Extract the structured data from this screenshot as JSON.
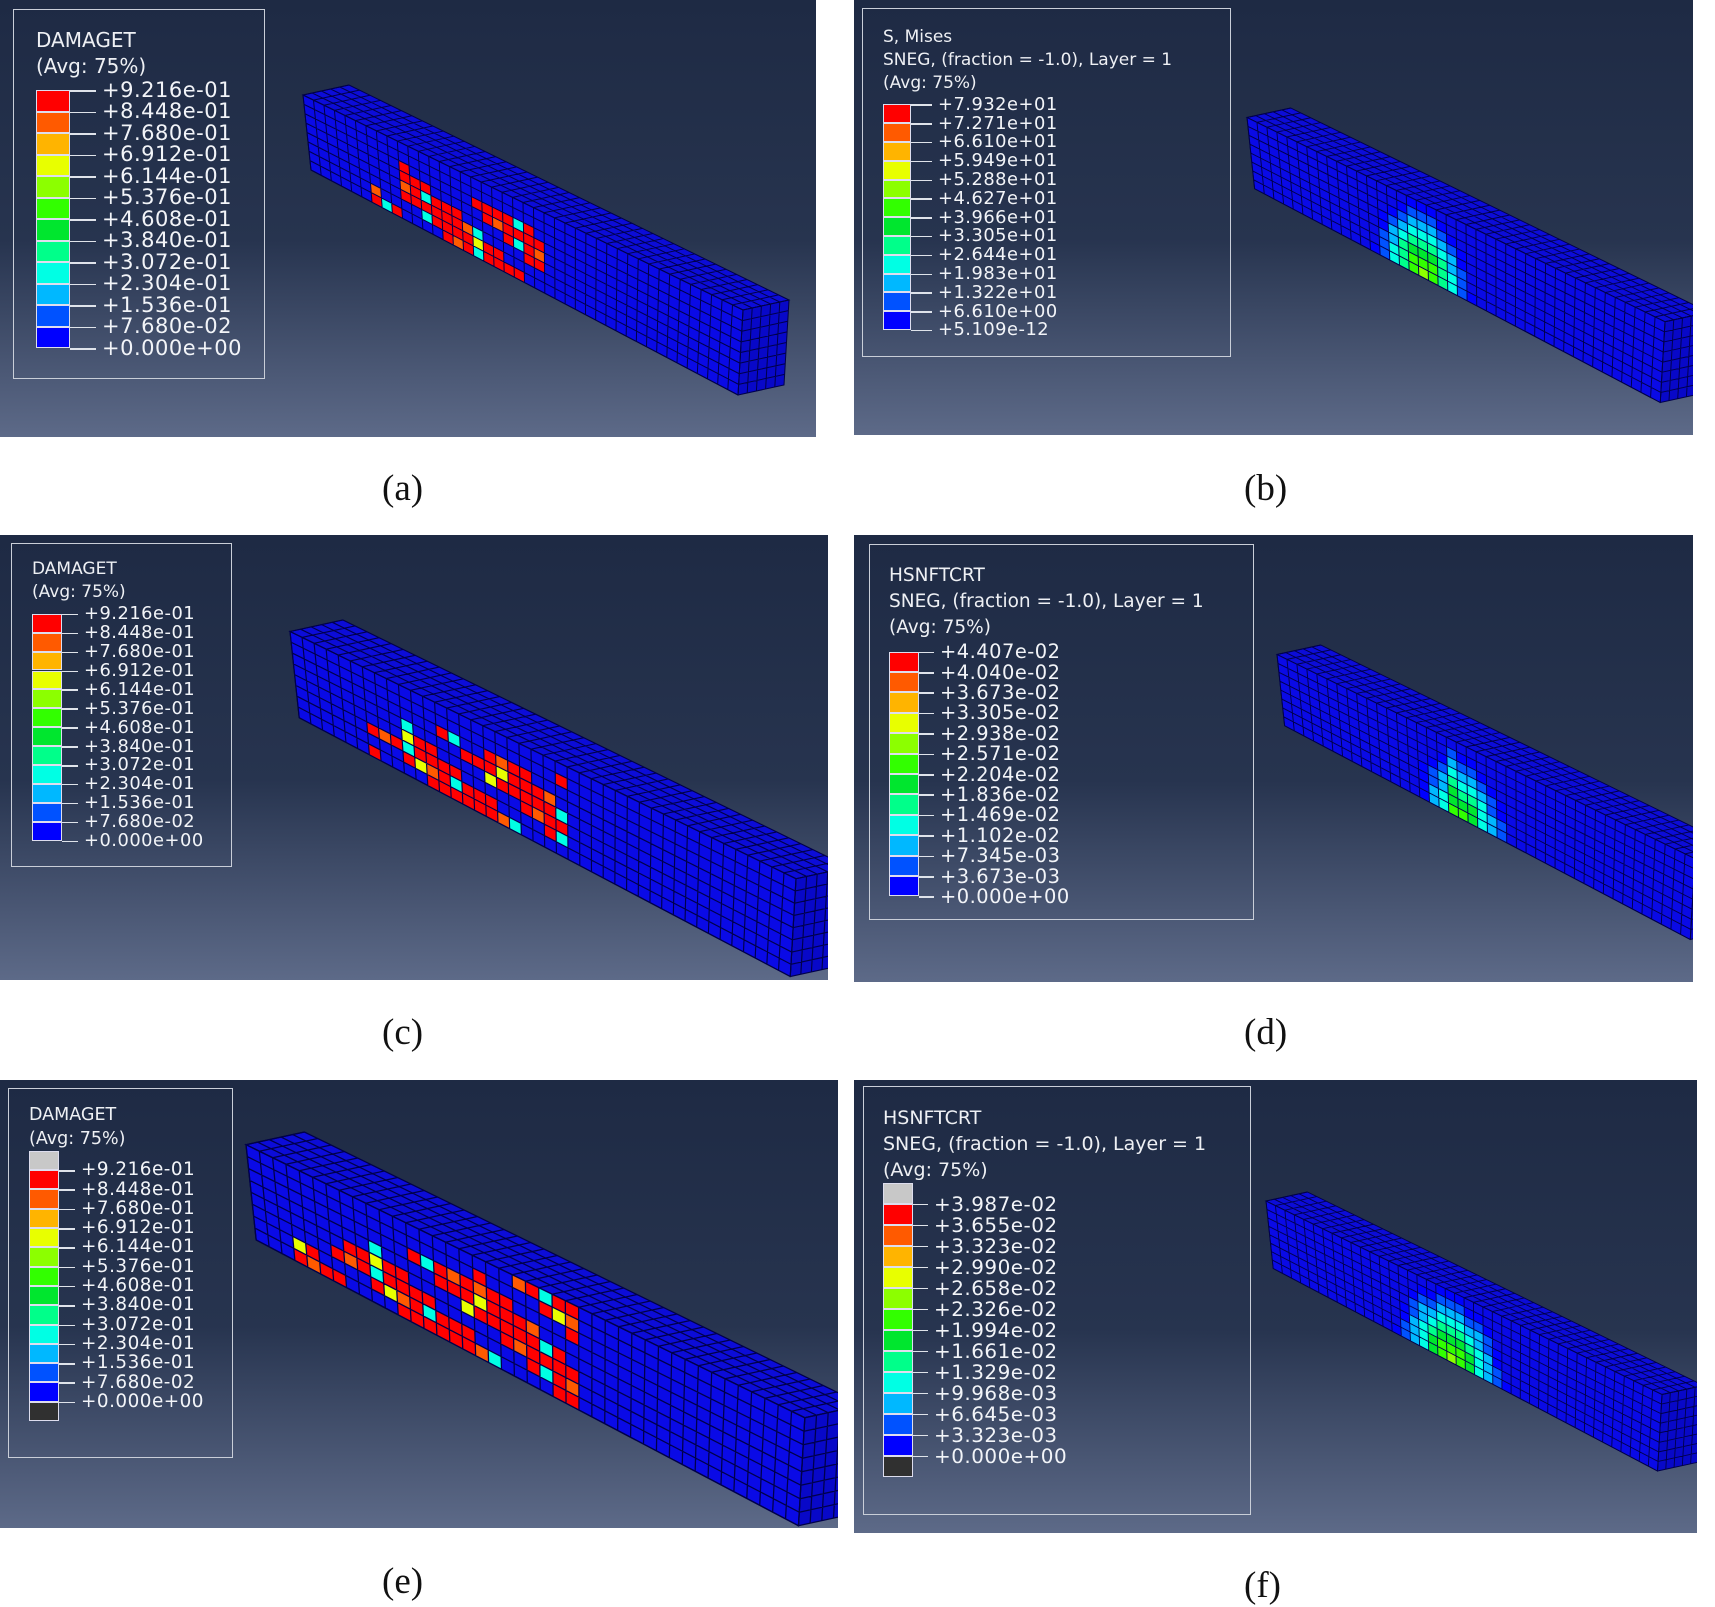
{
  "colors": {
    "scale12": [
      "#ff0000",
      "#ff5a00",
      "#ffb400",
      "#e8ff00",
      "#8cff00",
      "#32ff00",
      "#00e62e",
      "#00ff8a",
      "#00ffe4",
      "#00b8ff",
      "#0052ff",
      "#0000ff"
    ],
    "above": "#c8c8c8",
    "below": "#303030",
    "mesh_blue": "#0a0ae6",
    "mesh_line": "#00004a"
  },
  "panels": [
    {
      "id": "a",
      "caption": "(a)",
      "header": [
        "DAMAGET",
        "(Avg: 75%)"
      ],
      "labels": [
        "+9.216e-01",
        "+8.448e-01",
        "+7.680e-01",
        "+6.912e-01",
        "+6.144e-01",
        "+5.376e-01",
        "+4.608e-01",
        "+3.840e-01",
        "+3.072e-01",
        "+2.304e-01",
        "+1.536e-01",
        "+7.680e-02",
        "+0.000e+00"
      ],
      "extremes": false
    },
    {
      "id": "b",
      "caption": "(b)",
      "header": [
        "S, Mises",
        "SNEG, (fraction = -1.0), Layer = 1",
        "(Avg: 75%)"
      ],
      "labels": [
        "+7.932e+01",
        "+7.271e+01",
        "+6.610e+01",
        "+5.949e+01",
        "+5.288e+01",
        "+4.627e+01",
        "+3.966e+01",
        "+3.305e+01",
        "+2.644e+01",
        "+1.983e+01",
        "+1.322e+01",
        "+6.610e+00",
        "+5.109e-12"
      ],
      "extremes": false
    },
    {
      "id": "c",
      "caption": "(c)",
      "header": [
        "DAMAGET",
        "(Avg: 75%)"
      ],
      "labels": [
        "+9.216e-01",
        "+8.448e-01",
        "+7.680e-01",
        "+6.912e-01",
        "+6.144e-01",
        "+5.376e-01",
        "+4.608e-01",
        "+3.840e-01",
        "+3.072e-01",
        "+2.304e-01",
        "+1.536e-01",
        "+7.680e-02",
        "+0.000e+00"
      ],
      "extremes": false
    },
    {
      "id": "d",
      "caption": "(d)",
      "header": [
        "HSNFTCRT",
        "SNEG, (fraction = -1.0), Layer = 1",
        "(Avg: 75%)"
      ],
      "labels": [
        "+4.407e-02",
        "+4.040e-02",
        "+3.673e-02",
        "+3.305e-02",
        "+2.938e-02",
        "+2.571e-02",
        "+2.204e-02",
        "+1.836e-02",
        "+1.469e-02",
        "+1.102e-02",
        "+7.345e-03",
        "+3.673e-03",
        "+0.000e+00"
      ],
      "extremes": false
    },
    {
      "id": "e",
      "caption": "(e)",
      "header": [
        "DAMAGET",
        "(Avg: 75%)"
      ],
      "labels": [
        "+9.216e-01",
        "+8.448e-01",
        "+7.680e-01",
        "+6.912e-01",
        "+6.144e-01",
        "+5.376e-01",
        "+4.608e-01",
        "+3.840e-01",
        "+3.072e-01",
        "+2.304e-01",
        "+1.536e-01",
        "+7.680e-02",
        "+0.000e+00"
      ],
      "extremes": true
    },
    {
      "id": "f",
      "caption": "(f)",
      "header": [
        "HSNFTCRT",
        "SNEG, (fraction = -1.0), Layer = 1",
        "(Avg: 75%)"
      ],
      "labels": [
        "+3.987e-02",
        "+3.655e-02",
        "+3.323e-02",
        "+2.990e-02",
        "+2.658e-02",
        "+2.326e-02",
        "+1.994e-02",
        "+1.661e-02",
        "+1.329e-02",
        "+9.968e-03",
        "+6.645e-03",
        "+3.323e-03",
        "+0.000e+00"
      ],
      "extremes": true
    }
  ]
}
